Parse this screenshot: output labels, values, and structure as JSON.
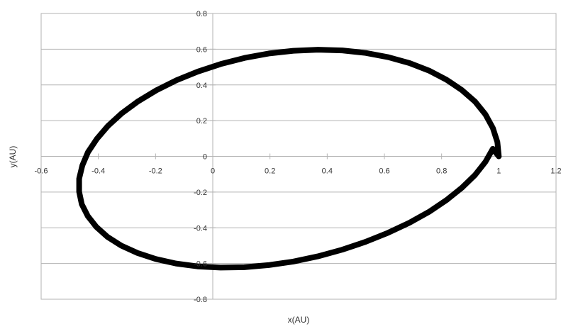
{
  "chart_data": {
    "type": "scatter",
    "title": "",
    "xlabel": "x(AU)",
    "ylabel": "y(AU)",
    "xlim": [
      -0.6,
      1.2
    ],
    "ylim": [
      -0.8,
      0.8
    ],
    "x_ticks": [
      "-0.6",
      "-0.4",
      "-0.2",
      "0",
      "0.2",
      "0.4",
      "0.6",
      "0.8",
      "1",
      "1.2"
    ],
    "y_ticks": [
      "0.8",
      "0.6",
      "0.4",
      "0.2",
      "0",
      "-0.2",
      "-0.4",
      "-0.6",
      "-0.8"
    ],
    "grid": "horizontal",
    "legend": "none",
    "series": [
      {
        "color": "#000000",
        "x": [
          1.0,
          0.995,
          0.979,
          0.953,
          0.917,
          0.871,
          0.817,
          0.756,
          0.688,
          0.614,
          0.535,
          0.453,
          0.368,
          0.282,
          0.196,
          0.111,
          0.028,
          -0.052,
          -0.127,
          -0.197,
          -0.261,
          -0.318,
          -0.366,
          -0.405,
          -0.436,
          -0.456,
          -0.467,
          -0.467,
          -0.458,
          -0.437,
          -0.407,
          -0.368,
          -0.32,
          -0.263,
          -0.199,
          -0.129,
          -0.053,
          0.027,
          0.11,
          0.195,
          0.281,
          0.367,
          0.452,
          0.534,
          0.613,
          0.687,
          0.756,
          0.817,
          0.871,
          0.917,
          0.953,
          0.979,
          0.995,
          1.0
        ],
        "y": [
          0.0,
          0.08,
          0.159,
          0.235,
          0.306,
          0.371,
          0.429,
          0.48,
          0.522,
          0.555,
          0.579,
          0.593,
          0.597,
          0.591,
          0.576,
          0.551,
          0.517,
          0.475,
          0.426,
          0.37,
          0.308,
          0.241,
          0.171,
          0.098,
          0.024,
          -0.051,
          -0.125,
          -0.198,
          -0.268,
          -0.334,
          -0.395,
          -0.451,
          -0.5,
          -0.541,
          -0.575,
          -0.6,
          -0.616,
          -0.623,
          -0.621,
          -0.609,
          -0.589,
          -0.56,
          -0.523,
          -0.479,
          -0.428,
          -0.372,
          -0.311,
          -0.245,
          -0.176,
          -0.104,
          -0.031,
          0.042,
          0.01,
          0.0
        ]
      }
    ]
  }
}
